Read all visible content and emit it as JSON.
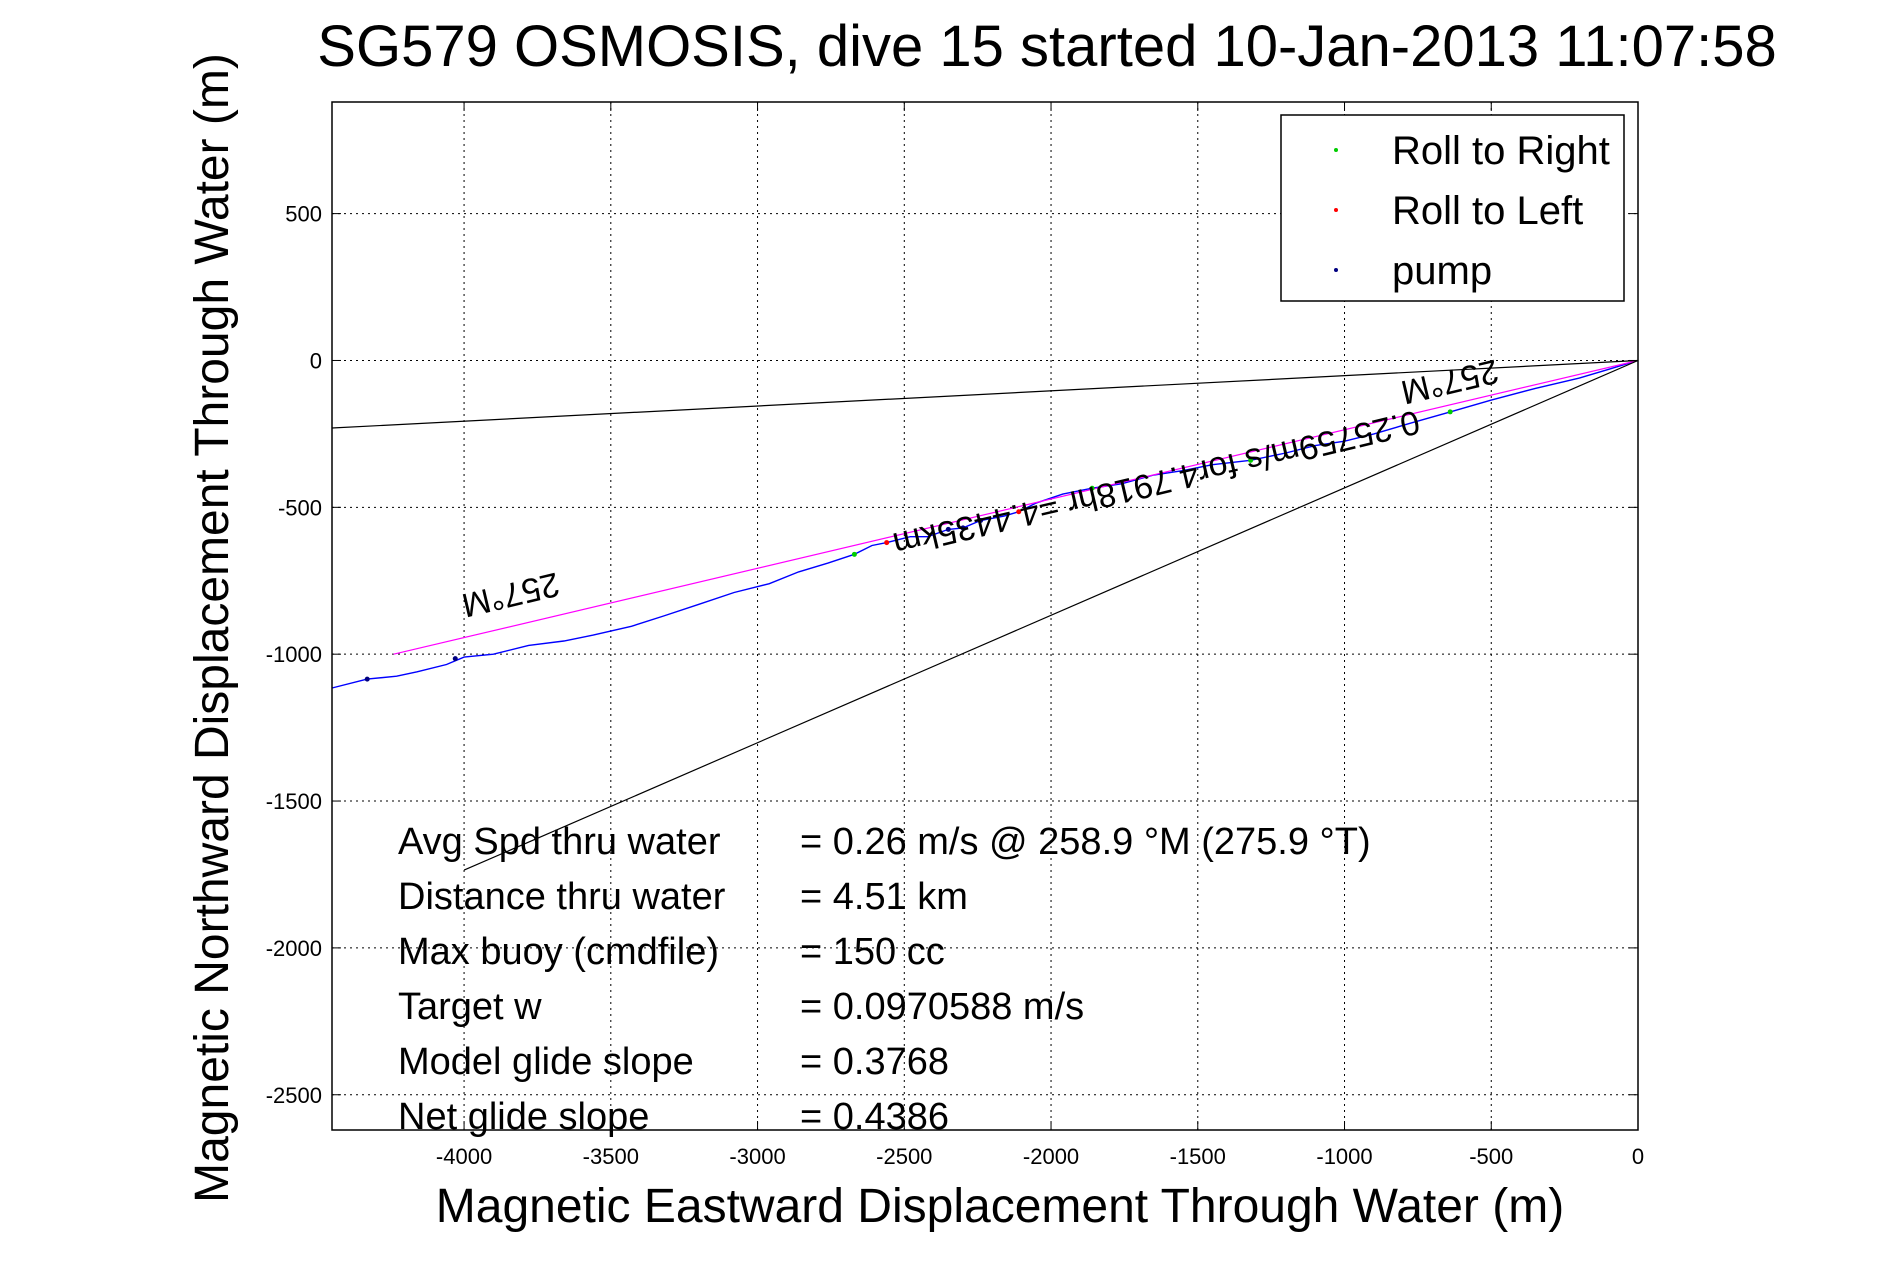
{
  "chart_data": {
    "type": "line",
    "title": "SG579 OSMOSIS, dive 15 started 10-Jan-2013 11:07:58",
    "xlabel": "Magnetic Eastward Displacement Through Water (m)",
    "ylabel": "Magnetic Northward Displacement Through Water (m)",
    "xlim": [
      -4450,
      0
    ],
    "ylim": [
      -2620,
      880
    ],
    "xticks": [
      -4000,
      -3500,
      -3000,
      -2500,
      -2000,
      -1500,
      -1000,
      -500,
      0
    ],
    "yticks": [
      500,
      0,
      -500,
      -1000,
      -1500,
      -2000,
      -2500
    ],
    "xtick_labels": [
      "-4000",
      "-3500",
      "-3000",
      "-2500",
      "-2000",
      "-1500",
      "-1000",
      "-500",
      "0"
    ],
    "ytick_labels": [
      "500",
      "0",
      "-500",
      "-1000",
      "-1500",
      "-2000",
      "-2500"
    ],
    "grid": true,
    "legend": {
      "placement": "top-right",
      "entries": [
        {
          "label": "Roll to Right",
          "color": "#00cc00"
        },
        {
          "label": "Roll to Left",
          "color": "#ff0000"
        },
        {
          "label": "pump",
          "color": "#000080"
        }
      ]
    },
    "series": [
      {
        "color": "#0000ff",
        "x": [
          0,
          -100,
          -200,
          -350,
          -500,
          -640,
          -780,
          -900,
          -1000,
          -1100,
          -1200,
          -1320,
          -1450,
          -1550,
          -1650,
          -1760,
          -1860,
          -1960,
          -2050,
          -2110,
          -2160,
          -2240,
          -2300,
          -2350,
          -2420,
          -2480,
          -2560,
          -2610,
          -2670,
          -2760,
          -2860,
          -2960,
          -3080,
          -3200,
          -3320,
          -3430,
          -3560,
          -3660,
          -3780,
          -3900,
          -4000,
          -4060,
          -4160,
          -4230,
          -4330,
          -4450
        ],
        "y": [
          0,
          -30,
          -60,
          -95,
          -135,
          -175,
          -215,
          -250,
          -275,
          -290,
          -315,
          -340,
          -355,
          -375,
          -390,
          -420,
          -435,
          -455,
          -485,
          -515,
          -530,
          -545,
          -570,
          -575,
          -600,
          -600,
          -620,
          -630,
          -660,
          -690,
          -720,
          -760,
          -790,
          -830,
          -870,
          -905,
          -935,
          -955,
          -970,
          -1000,
          -1010,
          -1035,
          -1060,
          -1075,
          -1085,
          -1115
        ]
      },
      {
        "color": "#ff00ff",
        "x": [
          0,
          -4240
        ],
        "y": [
          0,
          -1000
        ]
      },
      {
        "color": "#000000",
        "x": [
          0,
          -4450
        ],
        "y": [
          0,
          -230
        ]
      },
      {
        "color": "#000000",
        "x": [
          0,
          -4000
        ],
        "y": [
          0,
          -1735
        ]
      }
    ],
    "markers": {
      "roll_right": {
        "color": "#00cc00",
        "x": [
          -640,
          -1320,
          -1860,
          -2670
        ],
        "y": [
          -175,
          -340,
          -435,
          -660
        ]
      },
      "roll_left": {
        "color": "#ff0000",
        "x": [
          -2110,
          -2560
        ],
        "y": [
          -515,
          -620
        ]
      },
      "pump": {
        "color": "#000080",
        "x": [
          -2240,
          -2300,
          -2350,
          -4030,
          -4330
        ],
        "y": [
          -545,
          -570,
          -575,
          -1015,
          -1085
        ]
      }
    },
    "annotations": [
      {
        "text": "257°M",
        "x": -650,
        "y": -35
      },
      {
        "text": "0.25759m/s for4.7918hr =4.4435km",
        "x": -1650,
        "y": -380
      },
      {
        "text": "257°M",
        "x": -3850,
        "y": -760
      }
    ],
    "stats": [
      {
        "label": "Avg Spd thru water",
        "value": "=  0.26 m/s @ 258.9 °M (275.9 °T)"
      },
      {
        "label": "Distance thru water",
        "value": "=  4.51 km"
      },
      {
        "label": "Max buoy (cmdfile)",
        "value": "= 150 cc"
      },
      {
        "label": "Target w",
        "value": "= 0.0970588 m/s"
      },
      {
        "label": "Model glide slope",
        "value": "= 0.3768"
      },
      {
        "label": "Net glide slope",
        "value": "= 0.4386"
      }
    ]
  }
}
